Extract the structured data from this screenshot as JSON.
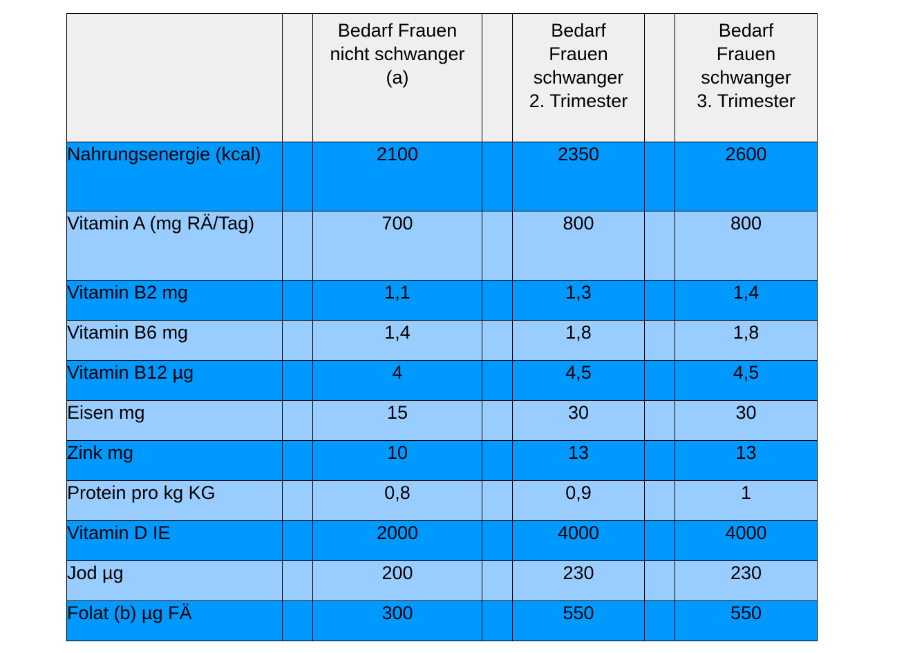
{
  "table": {
    "headers": {
      "label": "",
      "col_a": "Bedarf Frauen\nnicht schwanger\n(a)",
      "col_b": "Bedarf\nFrauen\nschwanger\n2. Trimester",
      "col_c": "Bedarf\nFrauen\nschwanger\n3. Trimester"
    },
    "rows": [
      {
        "label": "Nahrungsenergie (kcal)",
        "a": "2100",
        "b": "2350",
        "c": "2600"
      },
      {
        "label": "Vitamin A (mg RÄ/Tag)",
        "a": "700",
        "b": "800",
        "c": "800"
      },
      {
        "label": "Vitamin B2 mg",
        "a": "1,1",
        "b": "1,3",
        "c": "1,4"
      },
      {
        "label": "Vitamin B6 mg",
        "a": "1,4",
        "b": "1,8",
        "c": "1,8"
      },
      {
        "label": "Vitamin B12 µg",
        "a": "4",
        "b": "4,5",
        "c": "4,5"
      },
      {
        "label": "Eisen mg",
        "a": "15",
        "b": "30",
        "c": "30"
      },
      {
        "label": "Zink mg",
        "a": "10",
        "b": "13",
        "c": "13"
      },
      {
        "label": "Protein pro kg KG",
        "a": "0,8",
        "b": "0,9",
        "c": "1"
      },
      {
        "label": "Vitamin D IE",
        "a": "2000",
        "b": "4000",
        "c": "4000"
      },
      {
        "label": "Jod µg",
        "a": "200",
        "b": "230",
        "c": "230"
      },
      {
        "label": "Folat (b) µg FÄ",
        "a": "300",
        "b": "550",
        "c": "550"
      }
    ]
  },
  "colors": {
    "header_bg": "#efefef",
    "row_dark": "#0099ff",
    "row_light": "#99ccff"
  }
}
